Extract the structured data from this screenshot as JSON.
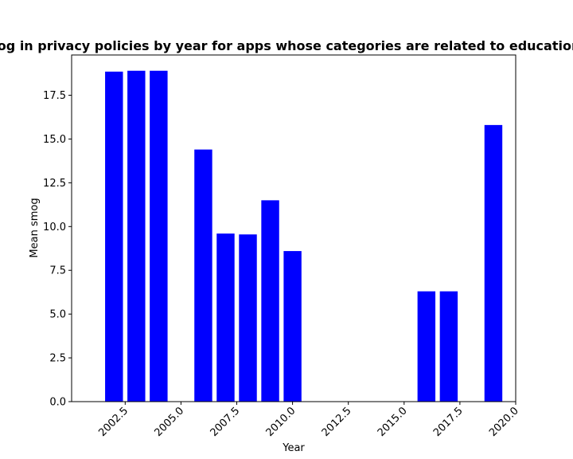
{
  "chart_data": {
    "type": "bar",
    "title": "Mean smog in privacy policies by year for apps whose categories are related to education;gambling",
    "xlabel": "Year",
    "ylabel": "Mean smog",
    "x": [
      2002,
      2003,
      2004,
      2006,
      2007,
      2008,
      2009,
      2010,
      2016,
      2017,
      2019
    ],
    "values": [
      18.85,
      18.9,
      18.9,
      14.4,
      9.6,
      9.55,
      11.5,
      8.6,
      6.3,
      6.3,
      15.8
    ],
    "xlim": [
      2000.1,
      2020.0
    ],
    "ylim": [
      0,
      19.8
    ],
    "xticks": [
      2002.5,
      2005.0,
      2007.5,
      2010.0,
      2012.5,
      2015.0,
      2017.5,
      2020.0
    ],
    "xtick_labels": [
      "2002.5",
      "2005.0",
      "2007.5",
      "2010.0",
      "2012.5",
      "2015.0",
      "2017.5",
      "2020.0"
    ],
    "yticks": [
      0,
      2.5,
      5.0,
      7.5,
      10.0,
      12.5,
      15.0,
      17.5
    ],
    "ytick_labels": [
      "0.0",
      "2.5",
      "5.0",
      "7.5",
      "10.0",
      "12.5",
      "15.0",
      "17.5"
    ],
    "bar_width": 0.8,
    "bar_color": "#0000ff",
    "grid": false
  }
}
